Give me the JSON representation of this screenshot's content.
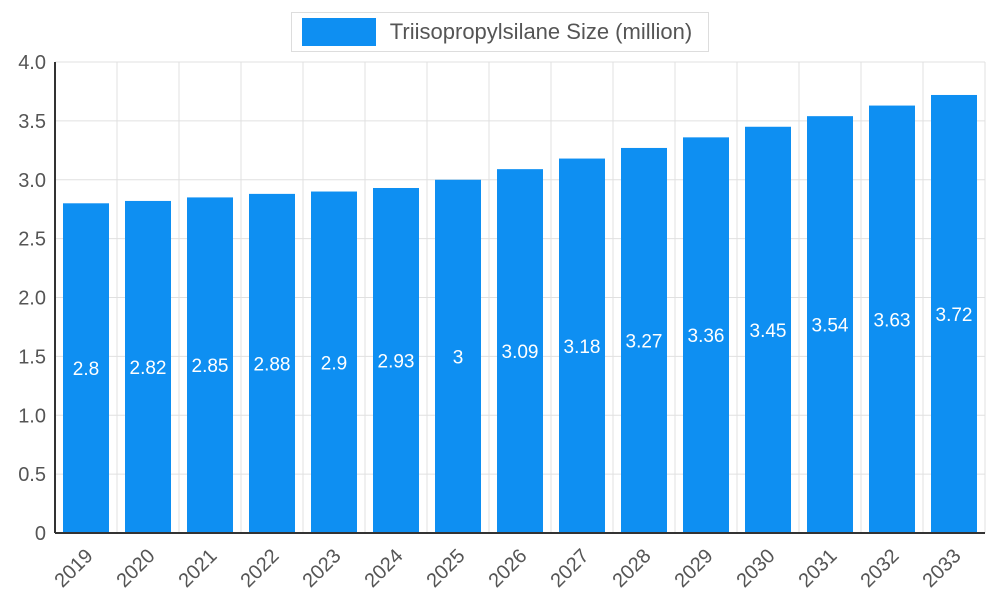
{
  "legend": {
    "label": "Triisopropylsilane Size (million)",
    "swatch_color": "#0e8ff2"
  },
  "chart_data": {
    "type": "bar",
    "title": "Triisopropylsilane Size (million)",
    "categories": [
      "2019",
      "2020",
      "2021",
      "2022",
      "2023",
      "2024",
      "2025",
      "2026",
      "2027",
      "2028",
      "2029",
      "2030",
      "2031",
      "2032",
      "2033"
    ],
    "values": [
      2.8,
      2.82,
      2.85,
      2.88,
      2.9,
      2.93,
      3,
      3.09,
      3.18,
      3.27,
      3.36,
      3.45,
      3.54,
      3.63,
      3.72
    ],
    "xlabel": "",
    "ylabel": "",
    "ylim": [
      0,
      4
    ],
    "yticks": [
      0,
      0.5,
      1,
      1.5,
      2,
      2.5,
      3,
      3.5,
      4
    ],
    "ytick_labels": [
      "0",
      "0.5",
      "1.0",
      "1.5",
      "2.0",
      "2.5",
      "3.0",
      "3.5",
      "4.0"
    ],
    "grid": true,
    "legend_position": "top",
    "bar_color": "#0e8ff2",
    "value_label_color": "#ffffff",
    "grid_color": "#e0e0e0",
    "axis_color": "#333333",
    "text_color": "#555555"
  }
}
